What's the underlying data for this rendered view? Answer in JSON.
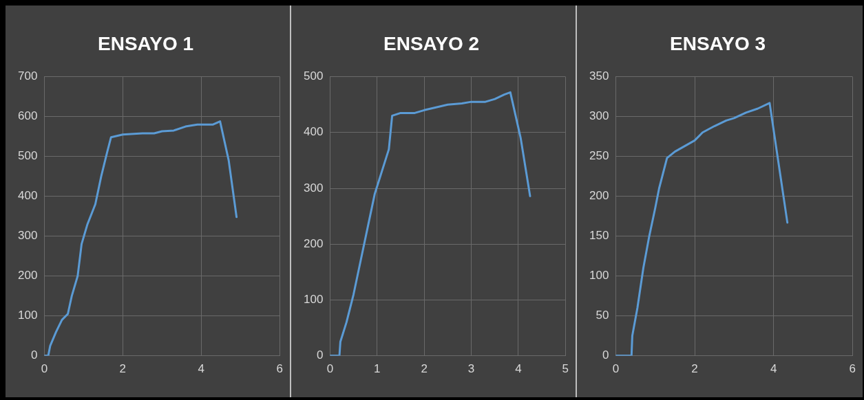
{
  "chart_data": [
    {
      "type": "line",
      "title": "ENSAYO 1",
      "color": "#5b9bd5",
      "marker": "none",
      "grid": true,
      "legend": false,
      "xlim": [
        0,
        6
      ],
      "xticks": [
        0,
        2,
        4,
        6
      ],
      "ylim": [
        0,
        700
      ],
      "yticks": [
        0,
        100,
        200,
        300,
        400,
        500,
        600,
        700
      ],
      "x": [
        0,
        0.1,
        0.15,
        0.3,
        0.45,
        0.6,
        0.7,
        0.85,
        0.95,
        1.1,
        1.3,
        1.45,
        1.6,
        1.7,
        2,
        2.5,
        2.8,
        3,
        3.3,
        3.6,
        3.9,
        4.3,
        4.48,
        4.7,
        4.9
      ],
      "values": [
        0,
        0,
        25,
        60,
        90,
        105,
        150,
        200,
        280,
        330,
        380,
        450,
        510,
        548,
        555,
        558,
        558,
        563,
        565,
        575,
        580,
        580,
        588,
        490,
        348
      ]
    },
    {
      "type": "line",
      "title": "ENSAYO 2",
      "color": "#5b9bd5",
      "marker": "none",
      "grid": true,
      "legend": false,
      "xlim": [
        0,
        5
      ],
      "xticks": [
        0,
        1,
        2,
        3,
        4,
        5
      ],
      "ylim": [
        0,
        500
      ],
      "yticks": [
        0,
        100,
        200,
        300,
        400,
        500
      ],
      "x": [
        0,
        0.2,
        0.22,
        0.35,
        0.5,
        0.65,
        0.8,
        0.95,
        1.1,
        1.25,
        1.32,
        1.5,
        1.8,
        2,
        2.5,
        2.8,
        3,
        3.3,
        3.5,
        3.7,
        3.83,
        4.05,
        4.25
      ],
      "values": [
        0,
        0,
        25,
        60,
        110,
        170,
        230,
        290,
        330,
        370,
        430,
        435,
        435,
        440,
        450,
        452,
        455,
        455,
        460,
        468,
        472,
        390,
        286
      ]
    },
    {
      "type": "line",
      "title": "ENSAYO 3",
      "color": "#5b9bd5",
      "marker": "none",
      "grid": true,
      "legend": false,
      "xlim": [
        0,
        6
      ],
      "xticks": [
        0,
        2,
        4,
        6
      ],
      "ylim": [
        0,
        350
      ],
      "yticks": [
        0,
        50,
        100,
        150,
        200,
        250,
        300,
        350
      ],
      "x": [
        0,
        0.4,
        0.42,
        0.55,
        0.7,
        0.85,
        1,
        1.1,
        1.3,
        1.5,
        2,
        2.2,
        2.5,
        2.8,
        3,
        3.3,
        3.6,
        3.9,
        4.35
      ],
      "values": [
        0,
        0,
        25,
        60,
        110,
        150,
        185,
        210,
        248,
        256,
        270,
        280,
        288,
        295,
        298,
        305,
        310,
        317,
        167
      ]
    }
  ]
}
